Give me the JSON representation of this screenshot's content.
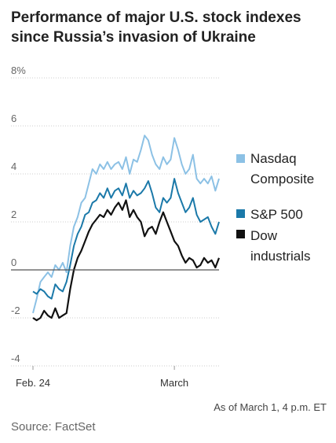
{
  "chart_data": {
    "type": "line",
    "title": "Performance of major U.S. stock indexes since Russia’s invasion of Ukraine",
    "ylim": [
      -4,
      8
    ],
    "yticks": [
      8,
      6,
      4,
      2,
      0,
      -2,
      -4
    ],
    "ytick_labels": [
      "8%",
      "6",
      "4",
      "2",
      "0",
      "-2",
      "-4"
    ],
    "x_ticks": [
      {
        "label": "Feb. 24",
        "x": 0
      },
      {
        "label": "March",
        "x": 0.76
      }
    ],
    "zero_line": true,
    "legend_position": "right",
    "series": [
      {
        "name": "Nasdaq Composite",
        "color": "#8cc1e5",
        "points": [
          [
            0,
            -1.8
          ],
          [
            0.02,
            -1.2
          ],
          [
            0.04,
            -0.5
          ],
          [
            0.06,
            -0.3
          ],
          [
            0.08,
            -0.1
          ],
          [
            0.1,
            -0.3
          ],
          [
            0.12,
            0.2
          ],
          [
            0.14,
            0.0
          ],
          [
            0.16,
            0.3
          ],
          [
            0.18,
            -0.1
          ],
          [
            0.2,
            1.0
          ],
          [
            0.22,
            1.8
          ],
          [
            0.24,
            2.2
          ],
          [
            0.26,
            2.8
          ],
          [
            0.28,
            3.0
          ],
          [
            0.3,
            3.6
          ],
          [
            0.32,
            4.2
          ],
          [
            0.34,
            4.0
          ],
          [
            0.36,
            4.4
          ],
          [
            0.38,
            4.2
          ],
          [
            0.4,
            4.5
          ],
          [
            0.42,
            4.2
          ],
          [
            0.44,
            4.4
          ],
          [
            0.46,
            4.5
          ],
          [
            0.48,
            4.2
          ],
          [
            0.5,
            4.7
          ],
          [
            0.52,
            4.0
          ],
          [
            0.54,
            4.6
          ],
          [
            0.56,
            4.5
          ],
          [
            0.58,
            5.0
          ],
          [
            0.6,
            5.6
          ],
          [
            0.62,
            5.4
          ],
          [
            0.64,
            4.8
          ],
          [
            0.66,
            4.4
          ],
          [
            0.68,
            4.2
          ],
          [
            0.7,
            4.7
          ],
          [
            0.72,
            4.4
          ],
          [
            0.74,
            4.6
          ],
          [
            0.76,
            5.5
          ],
          [
            0.78,
            5.0
          ],
          [
            0.8,
            4.4
          ],
          [
            0.82,
            4.0
          ],
          [
            0.84,
            4.2
          ],
          [
            0.86,
            4.8
          ],
          [
            0.88,
            3.8
          ],
          [
            0.9,
            3.6
          ],
          [
            0.92,
            3.8
          ],
          [
            0.94,
            3.6
          ],
          [
            0.96,
            3.9
          ],
          [
            0.98,
            3.3
          ],
          [
            1.0,
            3.8
          ]
        ]
      },
      {
        "name": "S&P 500",
        "color": "#1b79a9",
        "points": [
          [
            0,
            -0.9
          ],
          [
            0.02,
            -1.0
          ],
          [
            0.04,
            -0.8
          ],
          [
            0.06,
            -0.9
          ],
          [
            0.08,
            -1.1
          ],
          [
            0.1,
            -1.2
          ],
          [
            0.12,
            -0.6
          ],
          [
            0.14,
            -0.8
          ],
          [
            0.16,
            -0.9
          ],
          [
            0.18,
            -0.5
          ],
          [
            0.2,
            0.2
          ],
          [
            0.22,
            1.0
          ],
          [
            0.24,
            1.5
          ],
          [
            0.26,
            1.8
          ],
          [
            0.28,
            2.3
          ],
          [
            0.3,
            2.4
          ],
          [
            0.32,
            2.8
          ],
          [
            0.34,
            2.9
          ],
          [
            0.36,
            3.2
          ],
          [
            0.38,
            3.0
          ],
          [
            0.4,
            3.4
          ],
          [
            0.42,
            3.0
          ],
          [
            0.44,
            3.3
          ],
          [
            0.46,
            3.4
          ],
          [
            0.48,
            3.1
          ],
          [
            0.5,
            3.6
          ],
          [
            0.52,
            3.0
          ],
          [
            0.54,
            3.3
          ],
          [
            0.56,
            3.1
          ],
          [
            0.58,
            3.2
          ],
          [
            0.6,
            3.4
          ],
          [
            0.62,
            3.7
          ],
          [
            0.64,
            3.2
          ],
          [
            0.66,
            2.6
          ],
          [
            0.68,
            2.4
          ],
          [
            0.7,
            3.0
          ],
          [
            0.72,
            2.8
          ],
          [
            0.74,
            3.0
          ],
          [
            0.76,
            3.8
          ],
          [
            0.78,
            3.2
          ],
          [
            0.8,
            2.8
          ],
          [
            0.82,
            2.4
          ],
          [
            0.84,
            2.6
          ],
          [
            0.86,
            3.0
          ],
          [
            0.88,
            2.3
          ],
          [
            0.9,
            2.0
          ],
          [
            0.92,
            2.1
          ],
          [
            0.94,
            2.2
          ],
          [
            0.96,
            1.8
          ],
          [
            0.98,
            1.5
          ],
          [
            1.0,
            2.0
          ]
        ]
      },
      {
        "name": "Dow industrials",
        "color": "#111111",
        "points": [
          [
            0,
            -2.0
          ],
          [
            0.02,
            -2.1
          ],
          [
            0.04,
            -2.0
          ],
          [
            0.06,
            -1.7
          ],
          [
            0.08,
            -1.9
          ],
          [
            0.1,
            -2.0
          ],
          [
            0.12,
            -1.6
          ],
          [
            0.14,
            -2.0
          ],
          [
            0.16,
            -1.9
          ],
          [
            0.18,
            -1.8
          ],
          [
            0.2,
            -0.8
          ],
          [
            0.22,
            0.0
          ],
          [
            0.24,
            0.5
          ],
          [
            0.26,
            0.8
          ],
          [
            0.28,
            1.2
          ],
          [
            0.3,
            1.6
          ],
          [
            0.32,
            1.9
          ],
          [
            0.34,
            2.1
          ],
          [
            0.36,
            2.3
          ],
          [
            0.38,
            2.2
          ],
          [
            0.4,
            2.5
          ],
          [
            0.42,
            2.3
          ],
          [
            0.44,
            2.6
          ],
          [
            0.46,
            2.8
          ],
          [
            0.48,
            2.5
          ],
          [
            0.5,
            2.9
          ],
          [
            0.52,
            2.2
          ],
          [
            0.54,
            2.5
          ],
          [
            0.56,
            2.2
          ],
          [
            0.58,
            2.0
          ],
          [
            0.6,
            1.4
          ],
          [
            0.62,
            1.7
          ],
          [
            0.64,
            1.8
          ],
          [
            0.66,
            1.5
          ],
          [
            0.68,
            2.0
          ],
          [
            0.7,
            2.4
          ],
          [
            0.72,
            2.0
          ],
          [
            0.74,
            1.6
          ],
          [
            0.76,
            1.2
          ],
          [
            0.78,
            1.0
          ],
          [
            0.8,
            0.6
          ],
          [
            0.82,
            0.3
          ],
          [
            0.84,
            0.5
          ],
          [
            0.86,
            0.4
          ],
          [
            0.88,
            0.1
          ],
          [
            0.9,
            0.2
          ],
          [
            0.92,
            0.5
          ],
          [
            0.94,
            0.3
          ],
          [
            0.96,
            0.4
          ],
          [
            0.98,
            0.1
          ],
          [
            1.0,
            0.5
          ]
        ]
      }
    ],
    "note": "As of March 1, 4 p.m. ET",
    "source": "Source: FactSet"
  }
}
